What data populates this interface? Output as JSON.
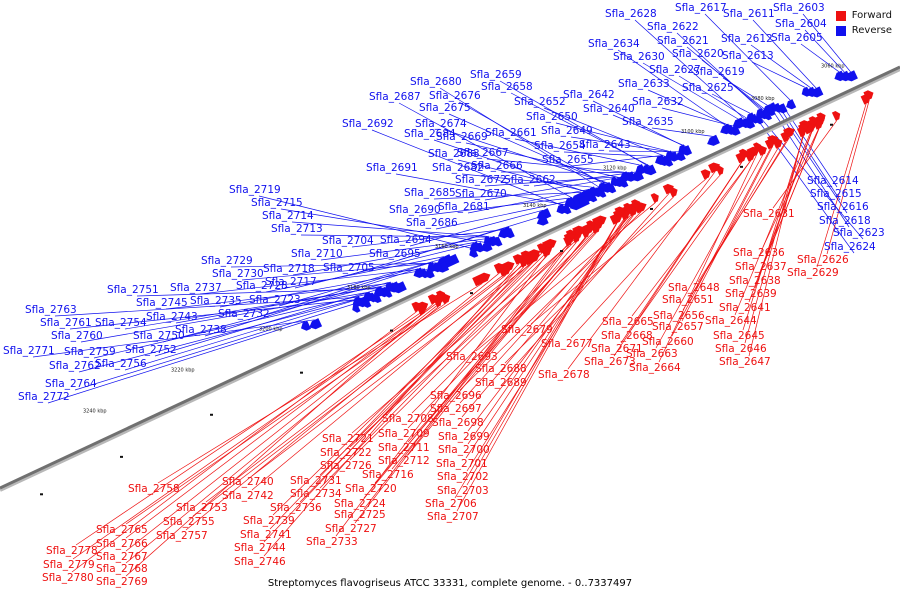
{
  "caption": "Streptomyces flavogriseus ATCC 33331, complete genome. - 0..7337497",
  "legend": [
    {
      "label": "Forward",
      "color": "#ee1111"
    },
    {
      "label": "Reverse",
      "color": "#1111ee"
    }
  ],
  "colors": {
    "forward": "#ee1111",
    "reverse": "#1111ee",
    "backbone": "#707070"
  },
  "ticks": [
    "3060 kbp",
    "3080 kbp",
    "3100 kbp",
    "3120 kbp",
    "3140 kbp",
    "3160 kbp",
    "3180 kbp",
    "3200 kbp",
    "3220 kbp",
    "3240 kbp"
  ],
  "reverse_genes": [
    "Sfla_2603",
    "Sfla_2604",
    "Sfla_2605",
    "Sfla_2611",
    "Sfla_2612",
    "Sfla_2613",
    "Sfla_2614",
    "Sfla_2615",
    "Sfla_2616",
    "Sfla_2617",
    "Sfla_2618",
    "Sfla_2619",
    "Sfla_2620",
    "Sfla_2621",
    "Sfla_2622",
    "Sfla_2623",
    "Sfla_2624",
    "Sfla_2625",
    "Sfla_2627",
    "Sfla_2628",
    "Sfla_2630",
    "Sfla_2632",
    "Sfla_2633",
    "Sfla_2634",
    "Sfla_2635",
    "Sfla_2640",
    "Sfla_2642",
    "Sfla_2643",
    "Sfla_2649",
    "Sfla_2650",
    "Sfla_2652",
    "Sfla_2654",
    "Sfla_2655",
    "Sfla_2658",
    "Sfla_2659",
    "Sfla_2661",
    "Sfla_2662",
    "Sfla_2666",
    "Sfla_2667",
    "Sfla_2669",
    "Sfla_2670",
    "Sfla_2672",
    "Sfla_2674",
    "Sfla_2675",
    "Sfla_2676",
    "Sfla_2680",
    "Sfla_2681",
    "Sfla_2682",
    "Sfla_2683",
    "Sfla_2684",
    "Sfla_2685",
    "Sfla_2686",
    "Sfla_2687",
    "Sfla_2690",
    "Sfla_2691",
    "Sfla_2692",
    "Sfla_2694",
    "Sfla_2695",
    "Sfla_2704",
    "Sfla_2705",
    "Sfla_2710",
    "Sfla_2713",
    "Sfla_2714",
    "Sfla_2715",
    "Sfla_2717",
    "Sfla_2718",
    "Sfla_2719",
    "Sfla_2723",
    "Sfla_2728",
    "Sfla_2729",
    "Sfla_2730",
    "Sfla_2732",
    "Sfla_2735",
    "Sfla_2737",
    "Sfla_2738",
    "Sfla_2743",
    "Sfla_2745",
    "Sfla_2750",
    "Sfla_2751",
    "Sfla_2752",
    "Sfla_2754",
    "Sfla_2756",
    "Sfla_2759",
    "Sfla_2760",
    "Sfla_2761",
    "Sfla_2762",
    "Sfla_2763",
    "Sfla_2764",
    "Sfla_2771",
    "Sfla_2772"
  ],
  "forward_genes": [
    "Sfla_2626",
    "Sfla_2629",
    "Sfla_2631",
    "Sfla_2636",
    "Sfla_2637",
    "Sfla_2638",
    "Sfla_2639",
    "Sfla_2641",
    "Sfla_2644",
    "Sfla_2645",
    "Sfla_2646",
    "Sfla_2647",
    "Sfla_2648",
    "Sfla_2651",
    "Sfla_2656",
    "Sfla_2657",
    "Sfla_2660",
    "Sfla_2663",
    "Sfla_2664",
    "Sfla_2665",
    "Sfla_2668",
    "Sfla_2671",
    "Sfla_2673",
    "Sfla_2677",
    "Sfla_2678",
    "Sfla_2679",
    "Sfla_2688",
    "Sfla_2689",
    "Sfla_2693",
    "Sfla_2696",
    "Sfla_2697",
    "Sfla_2698",
    "Sfla_2699",
    "Sfla_2700",
    "Sfla_2701",
    "Sfla_2702",
    "Sfla_2703",
    "Sfla_2706",
    "Sfla_2707",
    "Sfla_2708",
    "Sfla_2709",
    "Sfla_2711",
    "Sfla_2712",
    "Sfla_2716",
    "Sfla_2720",
    "Sfla_2721",
    "Sfla_2722",
    "Sfla_2724",
    "Sfla_2725",
    "Sfla_2726",
    "Sfla_2727",
    "Sfla_2731",
    "Sfla_2733",
    "Sfla_2734",
    "Sfla_2736",
    "Sfla_2739",
    "Sfla_2740",
    "Sfla_2741",
    "Sfla_2742",
    "Sfla_2744",
    "Sfla_2746",
    "Sfla_2753",
    "Sfla_2755",
    "Sfla_2757",
    "Sfla_2758",
    "Sfla_2765",
    "Sfla_2766",
    "Sfla_2767",
    "Sfla_2768",
    "Sfla_2769",
    "Sfla_2778",
    "Sfla_2779",
    "Sfla_2780"
  ]
}
